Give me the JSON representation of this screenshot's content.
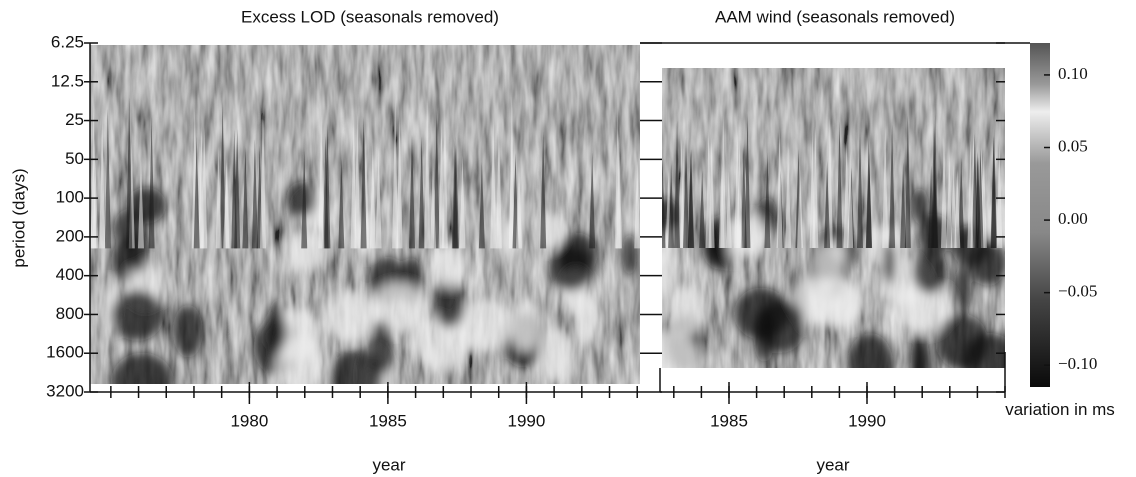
{
  "chart_data": [
    {
      "type": "heatmap",
      "title": "Excess LOD (seasonals removed)",
      "y_label": "period (days)",
      "x_label": "year",
      "ylim": [
        6.25,
        3200
      ],
      "yticks": [
        6.25,
        12.5,
        25,
        50,
        100,
        200,
        400,
        800,
        1600,
        3200
      ],
      "y_log": true,
      "xlim": [
        1974.5,
        1994.1
      ],
      "xticks": [
        1980,
        1985,
        1990
      ]
    },
    {
      "type": "heatmap",
      "title": "AAM wind (seasonals removed)",
      "x_label": "year",
      "xlim": [
        1982.5,
        1995
      ],
      "xticks": [
        1985,
        1990
      ]
    }
  ],
  "colorbar": {
    "label": "variation in ms",
    "lim": [
      -0.115,
      0.122
    ],
    "ticks": [
      {
        "value": 0.1,
        "label": "0.10"
      },
      {
        "value": 0.05,
        "label": "0.05"
      },
      {
        "value": 0,
        "label": "0.00"
      },
      {
        "value": -0.05,
        "label": "−0.05"
      },
      {
        "value": -0.1,
        "label": "−0.10"
      }
    ]
  }
}
